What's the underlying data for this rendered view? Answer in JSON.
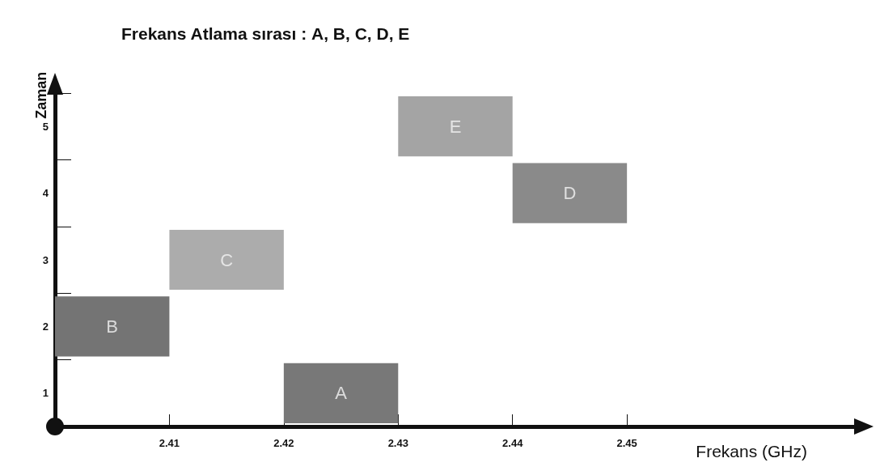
{
  "chart_data": {
    "type": "bar",
    "orientation": "horizontal",
    "title": "Frekans Atlama sırası : A, B, C, D, E",
    "xlabel": "Frekans (GHz)",
    "ylabel": "Zaman",
    "categories": [
      "5",
      "4",
      "3",
      "2",
      "1"
    ],
    "base": [
      2.43,
      2.44,
      2.41,
      2.4,
      2.42
    ],
    "values": [
      0.01,
      0.01,
      0.01,
      0.01,
      0.01
    ],
    "colors": [
      "#a4a4a4",
      "#8a8a8a",
      "#acacac",
      "#747474",
      "#787878"
    ],
    "xlim": [
      2.4,
      2.47
    ],
    "xticks": [
      2.41,
      2.42,
      2.43,
      2.44,
      2.45
    ],
    "annotations": [
      {
        "text": "E",
        "x": 2.435,
        "y": "5"
      },
      {
        "text": "D",
        "x": 2.445,
        "y": "4"
      },
      {
        "text": "C",
        "x": 2.415,
        "y": "3"
      },
      {
        "text": "B",
        "x": 2.405,
        "y": "2"
      },
      {
        "text": "A",
        "x": 2.425,
        "y": "1"
      }
    ],
    "grid": false
  }
}
